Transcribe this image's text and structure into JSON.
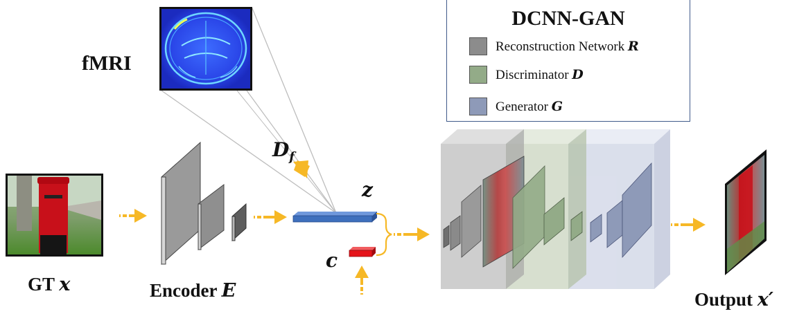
{
  "labels": {
    "fmri": "fMRI",
    "gt": "GT",
    "gt_var": "x",
    "encoder": "Encoder",
    "encoder_var": "E",
    "df_main": "D",
    "df_sub": "f",
    "z": "z",
    "c": "c",
    "output": "Output",
    "output_var": "x′"
  },
  "legend": {
    "title": "DCNN-GAN",
    "items": [
      {
        "text": "Reconstruction Network",
        "var": "R",
        "color": "#8c8c8c"
      },
      {
        "text": "Discriminator",
        "var": "D",
        "color": "#93ab88"
      },
      {
        "text": "Generator",
        "var": "G",
        "color": "#8e9ab8"
      }
    ]
  },
  "colors": {
    "arrow": "#f6b826",
    "z_bar": "#3e6fbd",
    "c_bar": "#e5141a",
    "reconstruction_block": "#bcbcbc",
    "discriminator_block": "#c8d3bd",
    "generator_block": "#cdd3e4"
  }
}
